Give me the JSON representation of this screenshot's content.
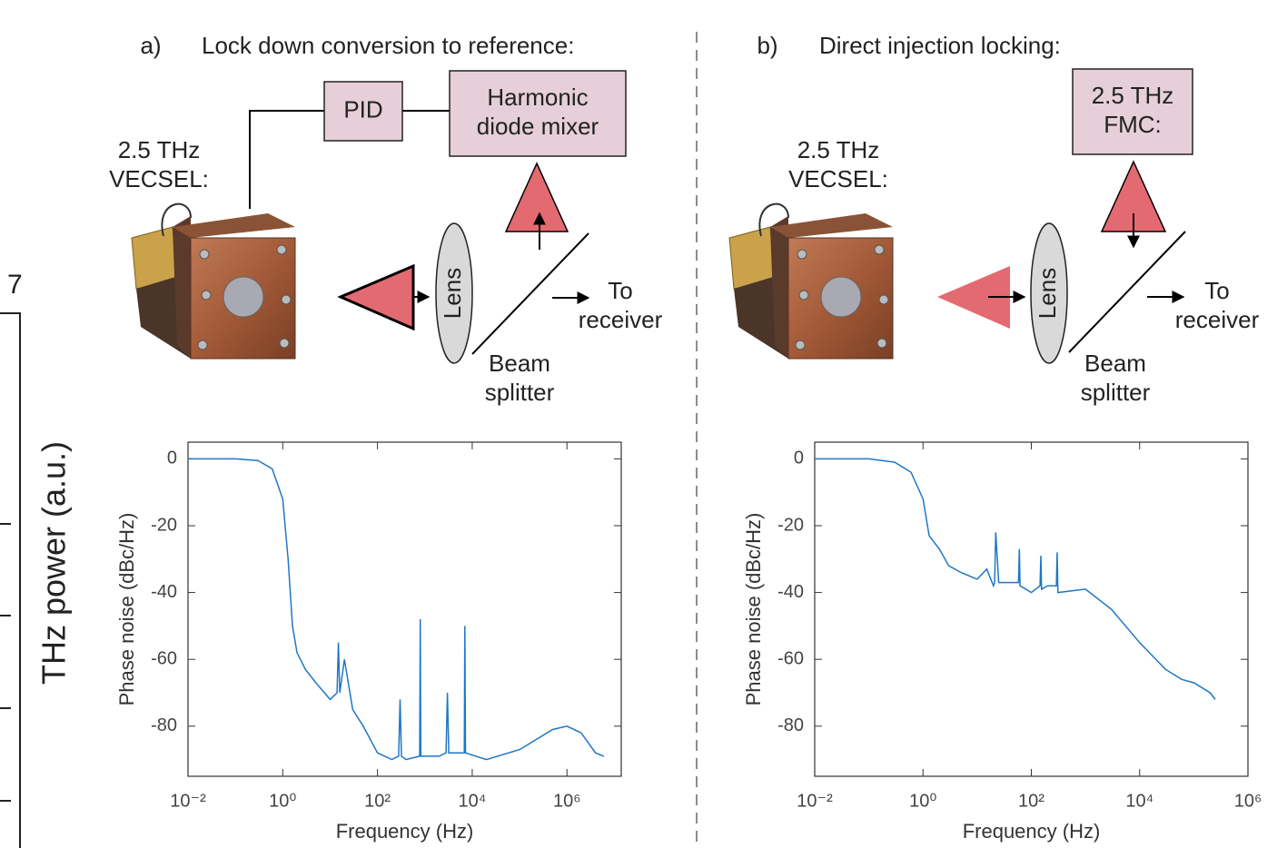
{
  "fragment": {
    "tick_label": "7",
    "axis_label": "THz power (a.u.)"
  },
  "diagrams": [
    {
      "label": "a)",
      "title": "Lock down conversion to reference:",
      "laser": [
        "2.5 THz",
        "VECSEL:"
      ],
      "boxes": [
        [
          "PID"
        ],
        [
          "Harmonic",
          "diode mixer"
        ]
      ],
      "lens": "Lens",
      "output": [
        "To",
        "receiver"
      ],
      "splitter": [
        "Beam",
        "splitter"
      ]
    },
    {
      "label": "b)",
      "title": "Direct injection locking:",
      "laser": [
        "2.5 THz",
        "VECSEL:"
      ],
      "boxes": [
        [
          "2.5 THz",
          "FMC:"
        ]
      ],
      "lens": "Lens",
      "output": [
        "To",
        "receiver"
      ],
      "splitter": [
        "Beam",
        "splitter"
      ]
    }
  ],
  "chart_data": [
    {
      "type": "line",
      "xlabel": "Frequency (Hz)",
      "ylabel": "Phase noise (dBc/Hz)",
      "xscale": "log",
      "color": "#1f77c4",
      "xlim": [
        0.01,
        14000000
      ],
      "ylim": [
        -95,
        5
      ],
      "xticks": [
        {
          "value": 0.01,
          "label": "10⁻²"
        },
        {
          "value": 1,
          "label": "10⁰"
        },
        {
          "value": 100,
          "label": "10²"
        },
        {
          "value": 10000,
          "label": "10⁴"
        },
        {
          "value": 1000000,
          "label": "10⁶"
        }
      ],
      "yticks": [
        0,
        -20,
        -40,
        -60,
        -80
      ],
      "x": [
        0.01,
        0.1,
        0.3,
        0.6,
        1,
        1.3,
        1.6,
        2,
        3,
        5,
        10,
        14,
        15,
        16,
        20,
        30,
        50,
        100,
        200,
        280,
        300,
        320,
        400,
        780,
        800,
        820,
        2000,
        2800,
        3000,
        3200,
        5000,
        6800,
        7000,
        7200,
        20000,
        100000,
        500000,
        1000000,
        2000000,
        4000000,
        6000000
      ],
      "values": [
        0,
        0,
        -0.5,
        -3,
        -12,
        -30,
        -50,
        -58,
        -63,
        -67,
        -72,
        -70,
        -55,
        -70,
        -60,
        -75,
        -80,
        -88,
        -90,
        -89,
        -72,
        -89,
        -90,
        -89,
        -48,
        -89,
        -89,
        -88,
        -70,
        -88,
        -88,
        -88,
        -50,
        -88,
        -90,
        -87,
        -81,
        -80,
        -82,
        -88,
        -89
      ]
    },
    {
      "type": "line",
      "xlabel": "Frequency (Hz)",
      "ylabel": "Phase noise (dBc/Hz)",
      "xscale": "log",
      "color": "#1f77c4",
      "xlim": [
        0.01,
        1000000
      ],
      "ylim": [
        -95,
        5
      ],
      "xticks": [
        {
          "value": 0.01,
          "label": "10⁻²"
        },
        {
          "value": 1,
          "label": "10⁰"
        },
        {
          "value": 100,
          "label": "10²"
        },
        {
          "value": 10000,
          "label": "10⁴"
        },
        {
          "value": 1000000,
          "label": "10⁶"
        }
      ],
      "yticks": [
        0,
        -20,
        -40,
        -60,
        -80
      ],
      "x": [
        0.01,
        0.1,
        0.3,
        0.6,
        1,
        1.3,
        2,
        3,
        5,
        10,
        15,
        20,
        21,
        22,
        25,
        50,
        58,
        60,
        62,
        100,
        145,
        150,
        155,
        200,
        290,
        300,
        310,
        1000,
        3000,
        10000,
        30000,
        60000,
        100000,
        200000,
        250000
      ],
      "values": [
        0,
        0,
        -1,
        -4,
        -12,
        -23,
        -27,
        -32,
        -34,
        -36,
        -33,
        -38,
        -37,
        -22,
        -37,
        -37,
        -37,
        -27,
        -38,
        -40,
        -38,
        -29,
        -39,
        -38,
        -38,
        -28,
        -40,
        -39,
        -45,
        -55,
        -63,
        -66,
        -67,
        -70,
        -72
      ]
    }
  ]
}
